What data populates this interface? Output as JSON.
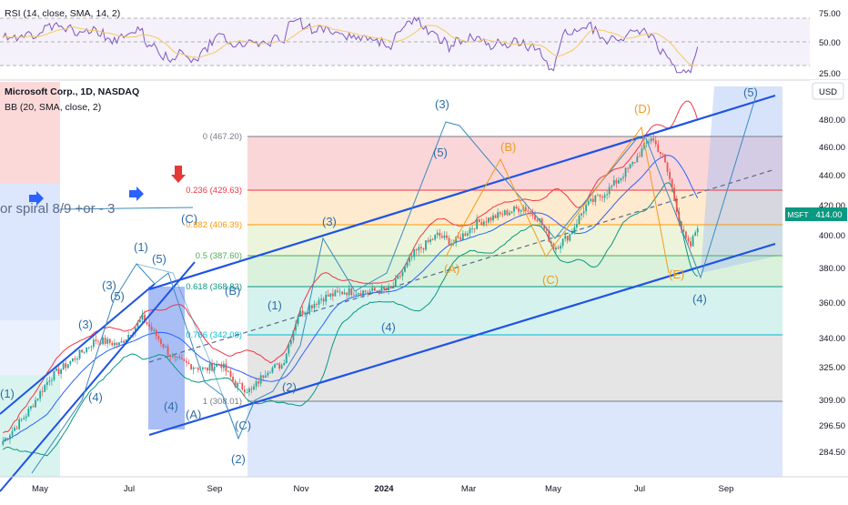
{
  "rsi_panel": {
    "legend": "RSI (14, close, SMA, 14, 2)",
    "ticks": [
      "75.00",
      "50.00",
      "25.00"
    ]
  },
  "main_panel": {
    "symbol_title": "Microsoft Corp., 1D, NASDAQ",
    "indicator_label": "BB (20, SMA, close, 2)",
    "currency_button": "USD",
    "price_badge_symbol": "MSFT",
    "price_badge_value": "414.00",
    "annotation_text": "or spiral  8/9 +or - 3",
    "colors": {
      "candle_up": "#26a69a",
      "candle_down": "#ef5350",
      "bb_mid": "#2962ff",
      "bb_upper": "#f23645",
      "bb_lower": "#089981",
      "channel": "#1e53e5",
      "wave_blue": "#3a8bbf",
      "wave_orange": "#f29b1d",
      "rsi_line": "#7e57c2",
      "rsi_ma": "#f7c95c",
      "arrow_down": "#e53935",
      "arrow_right": "#2962ff"
    }
  },
  "fib_levels": [
    {
      "label": "0 (467.20)",
      "color": "#787b86"
    },
    {
      "label": "0.236 (429.63)",
      "color": "#f23645"
    },
    {
      "label": "0.382 (406.39)",
      "color": "#ff9800"
    },
    {
      "label": "0.5 (387.60)",
      "color": "#4caf50"
    },
    {
      "label": "0.618 (368.82)",
      "color": "#089981"
    },
    {
      "label": "0.786 (342.08)",
      "color": "#00bcd4"
    },
    {
      "label": "1 (308.01)",
      "color": "#787b86"
    }
  ],
  "wave_labels": [
    "(1)",
    "(3)",
    "(5)",
    "(3)",
    "(4)",
    "(1)",
    "(5)",
    "(B)",
    "(4)",
    "(A)",
    "(C)",
    "(2)",
    "(1)",
    "(2)",
    "(3)",
    "(4)",
    "(3)",
    "(5)",
    "(C)",
    "(4)",
    "(5)",
    "(A)",
    "(B)",
    "(C)",
    "(D)",
    "(E)"
  ],
  "chart_data": {
    "type": "candlestick",
    "ticker": "MSFT",
    "interval": "1D",
    "exchange": "NASDAQ",
    "price_axis_ticks": [
      "480.00",
      "460.00",
      "440.00",
      "420.00",
      "400.00",
      "380.00",
      "360.00",
      "340.00",
      "325.00",
      "309.00",
      "296.50",
      "284.50"
    ],
    "time_axis_ticks": [
      "May",
      "Jul",
      "Sep",
      "Nov",
      "2024",
      "Mar",
      "May",
      "Jul",
      "Sep"
    ],
    "fib_retracement": [
      {
        "ratio": 0,
        "price": 467.2
      },
      {
        "ratio": 0.236,
        "price": 429.63
      },
      {
        "ratio": 0.382,
        "price": 406.39
      },
      {
        "ratio": 0.5,
        "price": 387.6
      },
      {
        "ratio": 0.618,
        "price": 368.82
      },
      {
        "ratio": 0.786,
        "price": 342.08
      },
      {
        "ratio": 1,
        "price": 308.01
      }
    ],
    "last_price": 414.0,
    "close_path": [
      {
        "t": 0,
        "p": 284
      },
      {
        "t": 0.03,
        "p": 300
      },
      {
        "t": 0.06,
        "p": 322
      },
      {
        "t": 0.09,
        "p": 333
      },
      {
        "t": 0.12,
        "p": 345
      },
      {
        "t": 0.15,
        "p": 342
      },
      {
        "t": 0.18,
        "p": 358
      },
      {
        "t": 0.2,
        "p": 346
      },
      {
        "t": 0.22,
        "p": 333
      },
      {
        "t": 0.24,
        "p": 330
      },
      {
        "t": 0.26,
        "p": 327
      },
      {
        "t": 0.28,
        "p": 331
      },
      {
        "t": 0.3,
        "p": 318
      },
      {
        "t": 0.32,
        "p": 314
      },
      {
        "t": 0.34,
        "p": 327
      },
      {
        "t": 0.36,
        "p": 330
      },
      {
        "t": 0.38,
        "p": 360
      },
      {
        "t": 0.41,
        "p": 370
      },
      {
        "t": 0.44,
        "p": 374
      },
      {
        "t": 0.47,
        "p": 374
      },
      {
        "t": 0.5,
        "p": 375
      },
      {
        "t": 0.53,
        "p": 397
      },
      {
        "t": 0.56,
        "p": 408
      },
      {
        "t": 0.58,
        "p": 403
      },
      {
        "t": 0.61,
        "p": 415
      },
      {
        "t": 0.64,
        "p": 420
      },
      {
        "t": 0.67,
        "p": 425
      },
      {
        "t": 0.69,
        "p": 418
      },
      {
        "t": 0.71,
        "p": 400
      },
      {
        "t": 0.73,
        "p": 408
      },
      {
        "t": 0.75,
        "p": 425
      },
      {
        "t": 0.78,
        "p": 435
      },
      {
        "t": 0.81,
        "p": 450
      },
      {
        "t": 0.835,
        "p": 467
      },
      {
        "t": 0.85,
        "p": 455
      },
      {
        "t": 0.86,
        "p": 440
      },
      {
        "t": 0.875,
        "p": 410
      },
      {
        "t": 0.885,
        "p": 400
      },
      {
        "t": 0.895,
        "p": 414
      }
    ],
    "rsi_range": [
      0,
      100
    ],
    "rsi_levels": [
      70,
      50,
      30
    ]
  }
}
